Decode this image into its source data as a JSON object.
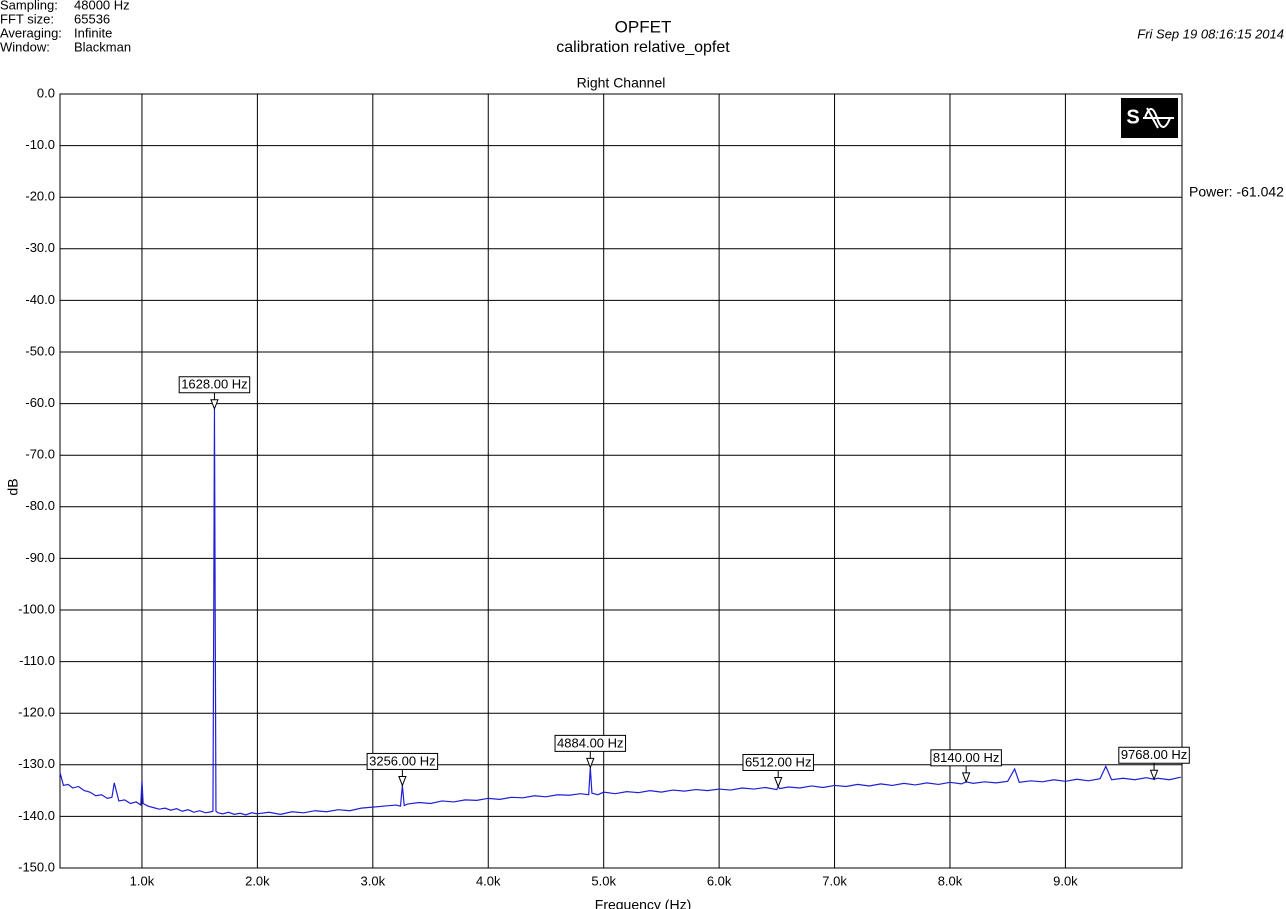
{
  "info": [
    {
      "label": "Sampling:",
      "value": "48000 Hz"
    },
    {
      "label": "FFT size:",
      "value": "65536"
    },
    {
      "label": "Averaging:",
      "value": "Infinite"
    },
    {
      "label": "Window:",
      "value": "Blackman"
    }
  ],
  "date": "Fri Sep 19 08:16:15 2014",
  "power_readout": "Power: -61.042",
  "chart_data": {
    "type": "line",
    "title": "OPFET",
    "subtitle": "calibration relative_opfet",
    "panel_title": "Right Channel",
    "x_label": "Frequency (Hz)",
    "y_label": "dB",
    "xlim": [
      290,
      10010
    ],
    "ylim": [
      -150,
      0
    ],
    "grid": true,
    "xticks": [
      {
        "value": 1000,
        "label": "1.0k"
      },
      {
        "value": 2000,
        "label": "2.0k"
      },
      {
        "value": 3000,
        "label": "3.0k"
      },
      {
        "value": 4000,
        "label": "4.0k"
      },
      {
        "value": 5000,
        "label": "5.0k"
      },
      {
        "value": 6000,
        "label": "6.0k"
      },
      {
        "value": 7000,
        "label": "7.0k"
      },
      {
        "value": 8000,
        "label": "8.0k"
      },
      {
        "value": 9000,
        "label": "9.0k"
      }
    ],
    "yticks": [
      {
        "value": 0,
        "label": "0.0"
      },
      {
        "value": -10,
        "label": "-10.0"
      },
      {
        "value": -20,
        "label": "-20.0"
      },
      {
        "value": -30,
        "label": "-30.0"
      },
      {
        "value": -40,
        "label": "-40.0"
      },
      {
        "value": -50,
        "label": "-50.0"
      },
      {
        "value": -60,
        "label": "-60.0"
      },
      {
        "value": -70,
        "label": "-70.0"
      },
      {
        "value": -80,
        "label": "-80.0"
      },
      {
        "value": -90,
        "label": "-90.0"
      },
      {
        "value": -100,
        "label": "-100.0"
      },
      {
        "value": -110,
        "label": "-110.0"
      },
      {
        "value": -120,
        "label": "-120.0"
      },
      {
        "value": -130,
        "label": "-130.0"
      },
      {
        "value": -140,
        "label": "-140.0"
      },
      {
        "value": -150,
        "label": "-150.0"
      }
    ],
    "x": [
      290,
      320,
      360,
      400,
      450,
      500,
      550,
      600,
      650,
      700,
      740,
      760,
      800,
      850,
      900,
      950,
      990,
      1000,
      1010,
      1050,
      1100,
      1150,
      1200,
      1250,
      1300,
      1350,
      1400,
      1450,
      1500,
      1550,
      1600,
      1615,
      1622,
      1628,
      1634,
      1641,
      1660,
      1700,
      1750,
      1800,
      1850,
      1900,
      1950,
      2000,
      2100,
      2200,
      2300,
      2400,
      2500,
      2600,
      2700,
      2800,
      2900,
      3000,
      3100,
      3200,
      3240,
      3256,
      3272,
      3300,
      3400,
      3500,
      3600,
      3700,
      3800,
      3900,
      4000,
      4100,
      4200,
      4300,
      4400,
      4500,
      4600,
      4700,
      4800,
      4870,
      4884,
      4898,
      4950,
      5000,
      5100,
      5200,
      5300,
      5400,
      5500,
      5600,
      5700,
      5800,
      5900,
      6000,
      6100,
      6200,
      6300,
      6400,
      6500,
      6512,
      6524,
      6600,
      6700,
      6800,
      6900,
      7000,
      7100,
      7200,
      7300,
      7400,
      7500,
      7600,
      7700,
      7800,
      7900,
      8000,
      8100,
      8140,
      8200,
      8300,
      8400,
      8500,
      8560,
      8600,
      8700,
      8800,
      8900,
      9000,
      9100,
      9200,
      9300,
      9350,
      9400,
      9500,
      9600,
      9700,
      9768,
      9800,
      9900,
      10000
    ],
    "series": [
      {
        "color": "#1f1fd6",
        "values": [
          -131.5,
          -134,
          -133.8,
          -134.5,
          -134.2,
          -135,
          -135.3,
          -136,
          -135.8,
          -136.5,
          -136.3,
          -133.5,
          -137,
          -136.8,
          -137.5,
          -137.2,
          -137.8,
          -133,
          -137.5,
          -138,
          -138.3,
          -138.6,
          -138.4,
          -138.8,
          -138.5,
          -139,
          -138.7,
          -139.2,
          -138.9,
          -139.3,
          -139.1,
          -139,
          -100,
          -61,
          -98,
          -139,
          -139.3,
          -139.5,
          -139.2,
          -139.6,
          -139.4,
          -139.7,
          -139.3,
          -139.5,
          -139.2,
          -139.6,
          -139.1,
          -139.3,
          -138.9,
          -139.1,
          -138.7,
          -138.9,
          -138.4,
          -138.2,
          -138,
          -137.8,
          -138,
          -134,
          -137.9,
          -137.6,
          -137.3,
          -137.5,
          -137,
          -137.2,
          -136.8,
          -136.9,
          -136.5,
          -136.7,
          -136.3,
          -136.4,
          -136,
          -136.2,
          -135.8,
          -135.9,
          -135.6,
          -135.8,
          -130.5,
          -135.5,
          -135.8,
          -135.3,
          -135.6,
          -135.2,
          -135.4,
          -135,
          -135.3,
          -134.9,
          -135.1,
          -134.8,
          -135,
          -134.7,
          -134.9,
          -134.5,
          -134.7,
          -134.4,
          -134.8,
          -134.2,
          -134.6,
          -134.3,
          -134.5,
          -134.1,
          -134.4,
          -134,
          -134.2,
          -133.8,
          -134.1,
          -133.7,
          -134,
          -133.6,
          -133.9,
          -133.5,
          -133.8,
          -133.4,
          -133.7,
          -133.3,
          -133.6,
          -133.3,
          -133.5,
          -133.2,
          -130.8,
          -133.4,
          -133.1,
          -133.3,
          -132.9,
          -133.2,
          -132.8,
          -133.1,
          -132.7,
          -130.3,
          -132.9,
          -132.6,
          -132.9,
          -132.5,
          -132.8,
          -132.6,
          -132.9,
          -132.4
        ]
      }
    ],
    "markers": [
      {
        "x": 1628,
        "y": -61,
        "label": "1628.00 Hz"
      },
      {
        "x": 3256,
        "y": -134,
        "label": "3256.00 Hz"
      },
      {
        "x": 4884,
        "y": -130.5,
        "label": "4884.00 Hz"
      },
      {
        "x": 6512,
        "y": -134.2,
        "label": "6512.00 Hz"
      },
      {
        "x": 8140,
        "y": -133.3,
        "label": "8140.00 Hz"
      },
      {
        "x": 9768,
        "y": -132.8,
        "label": "9768.00 Hz"
      }
    ]
  }
}
